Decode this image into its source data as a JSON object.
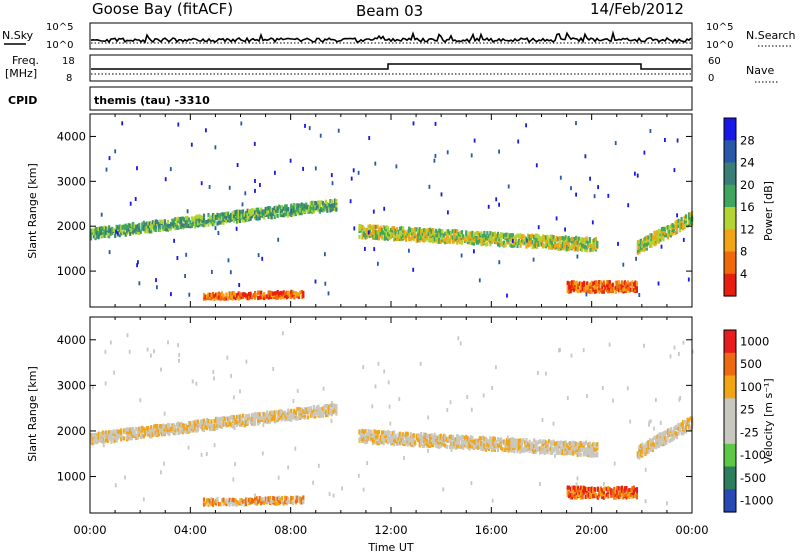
{
  "header": {
    "station": "Goose Bay (fitACF)",
    "beam": "Beam 03",
    "date": "14/Feb/2012"
  },
  "noise_panel": {
    "left_label": "N.Sky",
    "left_ticks": [
      "10^5",
      "10^0"
    ],
    "right_label": "N.Search",
    "right_ticks": [
      "10^5",
      "10^0"
    ]
  },
  "freq_panel": {
    "left_label_1": "Freq.",
    "left_label_2": "[MHz]",
    "left_ticks": [
      "18",
      "8"
    ],
    "right_label": "Nave",
    "right_ticks": [
      "60",
      "0"
    ]
  },
  "cpid": {
    "label": "CPID",
    "text": "themis (tau) -3310"
  },
  "x_axis": {
    "label": "Time UT",
    "ticks": [
      "00:00",
      "04:00",
      "08:00",
      "12:00",
      "16:00",
      "20:00",
      "00:00"
    ]
  },
  "colors": {
    "power": [
      "#1818e8",
      "#2858a8",
      "#3a7e78",
      "#3fa660",
      "#b4d436",
      "#f0a416",
      "#f06a0c",
      "#e81e0e"
    ],
    "velocity": [
      "#e81c1c",
      "#ee6a10",
      "#f2a412",
      "#c8c8c0",
      "#c8c8c0",
      "#5cc846",
      "#2c7e5c",
      "#2848b4"
    ]
  },
  "chart_data": [
    {
      "type": "heatmap",
      "name": "power-panel",
      "ylabel": "Slant Range [km]",
      "yticks": [
        "1000",
        "2000",
        "3000",
        "4000"
      ],
      "ylim": [
        200,
        4500
      ],
      "xlim": [
        0,
        24
      ],
      "colorbar_label": "Power [dB]",
      "colorbar_ticks": [
        "4",
        "8",
        "12",
        "16",
        "20",
        "24",
        "28"
      ],
      "features": [
        {
          "desc": "early band",
          "t0": 0.0,
          "t1": 9.8,
          "r_start": 1850,
          "r_end": 2500,
          "width": 220,
          "level": 3
        },
        {
          "desc": "main band",
          "t0": 10.7,
          "t1": 20.2,
          "r_start": 1900,
          "r_end": 1600,
          "width": 260,
          "level": 4
        },
        {
          "desc": "late band",
          "t0": 21.8,
          "t1": 24.0,
          "r_start": 1550,
          "r_end": 2200,
          "width": 260,
          "level": 4
        },
        {
          "desc": "near echo morning",
          "t0": 4.5,
          "t1": 8.5,
          "r_start": 450,
          "r_end": 500,
          "width": 120,
          "level": 6
        },
        {
          "desc": "near echo evening",
          "t0": 19.0,
          "t1": 21.8,
          "r_start": 650,
          "r_end": 650,
          "width": 180,
          "level": 6
        }
      ]
    },
    {
      "type": "heatmap",
      "name": "velocity-panel",
      "ylabel": "Slant Range [km]",
      "yticks": [
        "1000",
        "2000",
        "3000",
        "4000"
      ],
      "ylim": [
        200,
        4500
      ],
      "xlim": [
        0,
        24
      ],
      "colorbar_label": "Velocity [m s⁻¹]",
      "colorbar_ticks": [
        "1000",
        "500",
        "100",
        "25",
        "-25",
        "-100",
        "-500",
        "-1000"
      ],
      "features": [
        {
          "desc": "early band",
          "t0": 0.0,
          "t1": 9.8,
          "r_start": 1850,
          "r_end": 2500,
          "width": 220,
          "level": 3
        },
        {
          "desc": "main band",
          "t0": 10.7,
          "t1": 20.2,
          "r_start": 1900,
          "r_end": 1600,
          "width": 260,
          "level": 3
        },
        {
          "desc": "late band",
          "t0": 21.8,
          "t1": 24.0,
          "r_start": 1550,
          "r_end": 2200,
          "width": 260,
          "level": 3
        },
        {
          "desc": "near echo morning",
          "t0": 4.5,
          "t1": 8.5,
          "r_start": 450,
          "r_end": 500,
          "width": 120,
          "level": 2
        },
        {
          "desc": "near echo evening",
          "t0": 19.0,
          "t1": 21.8,
          "r_start": 650,
          "r_end": 650,
          "width": 180,
          "level": 1
        }
      ]
    }
  ]
}
